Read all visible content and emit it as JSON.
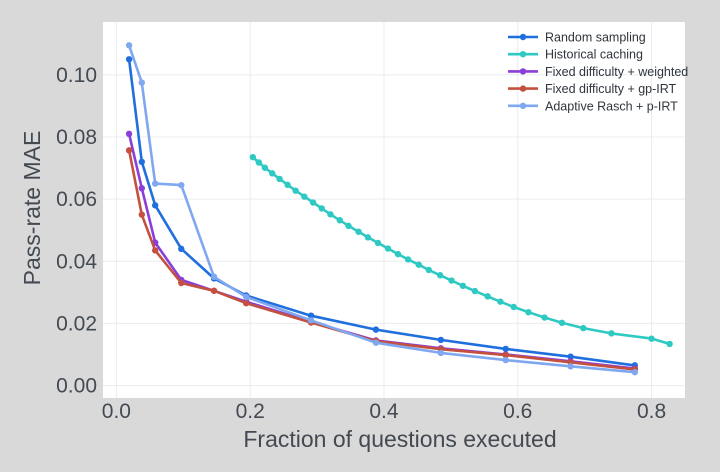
{
  "chart_data": {
    "type": "line",
    "xlabel": "Fraction of questions executed",
    "ylabel": "Pass-rate MAE",
    "xlim": [
      -0.02,
      0.85
    ],
    "ylim": [
      -0.004,
      0.117
    ],
    "x_ticks": [
      "0.0",
      "0.2",
      "0.4",
      "0.6",
      "0.8"
    ],
    "x_tick_values": [
      0.0,
      0.2,
      0.4,
      0.6,
      0.8
    ],
    "y_ticks": [
      "0.00",
      "0.02",
      "0.04",
      "0.06",
      "0.08",
      "0.10"
    ],
    "y_tick_values": [
      0.0,
      0.02,
      0.04,
      0.06,
      0.08,
      0.1
    ],
    "grid": true,
    "legend_position": "top-right",
    "series": [
      {
        "name": "Random sampling",
        "color": "#1f6fde",
        "x": [
          0.019,
          0.038,
          0.058,
          0.097,
          0.146,
          0.194,
          0.291,
          0.388,
          0.485,
          0.582,
          0.679,
          0.775
        ],
        "y": [
          0.105,
          0.072,
          0.058,
          0.044,
          0.0345,
          0.029,
          0.0225,
          0.018,
          0.0147,
          0.0118,
          0.0093,
          0.0065
        ]
      },
      {
        "name": "Historical caching",
        "color": "#2ec9c2",
        "x": [
          0.204,
          0.213,
          0.222,
          0.233,
          0.244,
          0.256,
          0.268,
          0.281,
          0.294,
          0.307,
          0.32,
          0.334,
          0.347,
          0.362,
          0.376,
          0.391,
          0.406,
          0.421,
          0.436,
          0.452,
          0.467,
          0.484,
          0.501,
          0.518,
          0.536,
          0.555,
          0.574,
          0.594,
          0.616,
          0.64,
          0.666,
          0.698,
          0.74,
          0.8,
          0.827
        ],
        "y": [
          0.0735,
          0.0718,
          0.0701,
          0.0683,
          0.0665,
          0.0646,
          0.0627,
          0.0608,
          0.0589,
          0.057,
          0.0551,
          0.0532,
          0.0514,
          0.0495,
          0.0477,
          0.0459,
          0.0441,
          0.0423,
          0.0406,
          0.0389,
          0.0372,
          0.0355,
          0.0338,
          0.0321,
          0.0304,
          0.0287,
          0.027,
          0.0253,
          0.0236,
          0.0219,
          0.0202,
          0.0185,
          0.0168,
          0.0151,
          0.0134
        ]
      },
      {
        "name": "Fixed difficulty + weighted",
        "color": "#8b3fd9",
        "x": [
          0.019,
          0.038,
          0.058,
          0.097,
          0.146,
          0.194,
          0.291,
          0.388,
          0.485,
          0.582,
          0.679,
          0.775
        ],
        "y": [
          0.081,
          0.0635,
          0.046,
          0.034,
          0.0305,
          0.027,
          0.0205,
          0.0145,
          0.012,
          0.01,
          0.0078,
          0.0055
        ]
      },
      {
        "name": "Fixed difficulty + gp-IRT",
        "color": "#c4503f",
        "x": [
          0.019,
          0.038,
          0.058,
          0.097,
          0.146,
          0.194,
          0.291,
          0.388,
          0.485,
          0.582,
          0.679,
          0.775
        ],
        "y": [
          0.0757,
          0.055,
          0.0435,
          0.033,
          0.0305,
          0.0265,
          0.0203,
          0.0143,
          0.0117,
          0.0098,
          0.0075,
          0.0052
        ]
      },
      {
        "name": "Adaptive Rasch + p-IRT",
        "color": "#7fa8f0",
        "x": [
          0.019,
          0.038,
          0.058,
          0.097,
          0.146,
          0.194,
          0.291,
          0.388,
          0.485,
          0.582,
          0.679,
          0.775
        ],
        "y": [
          0.1095,
          0.0975,
          0.065,
          0.0645,
          0.035,
          0.0285,
          0.021,
          0.0138,
          0.0105,
          0.0082,
          0.0062,
          0.0043
        ]
      }
    ]
  }
}
